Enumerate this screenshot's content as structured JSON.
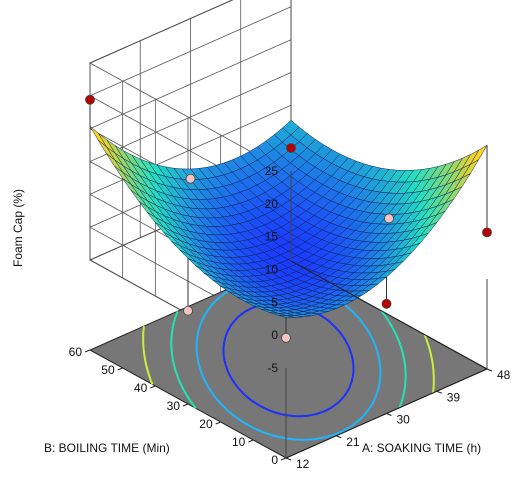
{
  "chart_data": {
    "type": "surface3d",
    "zlabel": "Foam Cap (%)",
    "xlabel": "A: SOAKING TIME (h)",
    "ylabel": "B: BOILING TIME (Min)",
    "z_ticks": [
      "-5",
      "0",
      "5",
      "10",
      "15",
      "20",
      "25"
    ],
    "x_ticks": [
      "12",
      "21",
      "30",
      "39",
      "48"
    ],
    "y_ticks": [
      "0",
      "10",
      "20",
      "30",
      "40",
      "50",
      "60"
    ],
    "zlim": [
      -5,
      25
    ],
    "xlim": [
      12,
      48
    ],
    "ylim": [
      0,
      60
    ],
    "surface": {
      "model": "quadratic",
      "center_x": 30,
      "center_y": 30,
      "min_z": -3.5,
      "coef_x2": 0.0215,
      "coef_y2": 0.0062,
      "coef_xy": -0.0117
    },
    "design_points": [
      {
        "x": 12,
        "y": 60,
        "z": 19.4,
        "residual": "above"
      },
      {
        "x": 48,
        "y": 0,
        "z": 2.1,
        "residual": "above"
      },
      {
        "x": 12,
        "y": 0,
        "z": -0.4,
        "residual": "below"
      },
      {
        "x": 48,
        "y": 60,
        "z": -1.5,
        "residual": "above"
      },
      {
        "x": 12,
        "y": 30,
        "z": -4.5,
        "residual": "below"
      },
      {
        "x": 48,
        "y": 30,
        "z": -4.0,
        "residual": "below"
      },
      {
        "x": 30,
        "y": 60,
        "z": 0.6,
        "residual": "below"
      },
      {
        "x": 30,
        "y": 0,
        "z": -2.0,
        "residual": "above"
      }
    ],
    "contour_levels": [
      -1.5,
      0.5,
      3,
      6.5
    ],
    "colors": {
      "surface_low": "#1a3cff",
      "surface_mid": "#22e0c0",
      "surface_high": "#ffd21a",
      "floor": "#777777",
      "point_above": "#b40000",
      "point_below": "#f4c3c3"
    }
  }
}
